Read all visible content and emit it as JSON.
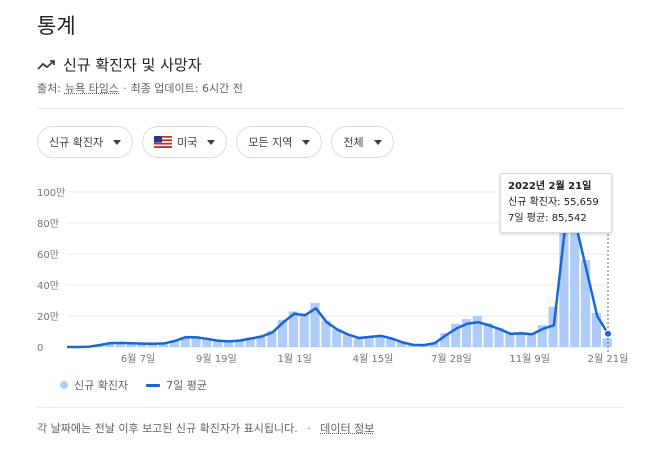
{
  "heading": "통계",
  "subheading": "신규 확진자 및 사망자",
  "source": {
    "label": "출처:",
    "link": "뉴욕 타임스",
    "dot": "·",
    "updated": "최종 업데이트: 6시간 전"
  },
  "filters": {
    "metric": "신규 확진자",
    "country": "미국",
    "region": "모든 지역",
    "period": "전체"
  },
  "tooltip": {
    "date": "2022년 2월 21일",
    "new_cases": "신규 확진자: 55,659",
    "avg": "7일 평균: 85,542"
  },
  "legend": {
    "bars": "신규 확진자",
    "line": "7일 평균"
  },
  "footer": {
    "note": "각 날짜에는 전날 이후 보고된 신규 확진자가 표시됩니다.",
    "dot": "·",
    "link": "데이터 정보"
  },
  "colors": {
    "bar": "#aecbfa",
    "line": "#1967d2",
    "grid": "#ebebeb"
  },
  "chart_data": {
    "type": "bar",
    "y_ticks": [
      "0",
      "20만",
      "40만",
      "60만",
      "80만",
      "100만"
    ],
    "x_ticks": [
      "6월 7일",
      "9월 19일",
      "1월 1일",
      "4월 15일",
      "7월 28일",
      "11월 9일",
      "2월 21일"
    ],
    "ylim": [
      0,
      1000000
    ],
    "grid": true,
    "series": [
      {
        "name": "7일 평균",
        "kind": "line",
        "values": [
          0,
          0,
          2000,
          12000,
          25000,
          27000,
          24000,
          22000,
          21000,
          23000,
          40000,
          64000,
          62000,
          52000,
          40000,
          36000,
          42000,
          55000,
          68000,
          95000,
          160000,
          215000,
          205000,
          250000,
          160000,
          112000,
          80000,
          58000,
          65000,
          72000,
          55000,
          30000,
          14000,
          12000,
          25000,
          75000,
          120000,
          150000,
          160000,
          140000,
          115000,
          85000,
          88000,
          82000,
          118000,
          140000,
          750000,
          800000,
          500000,
          200000,
          85542
        ]
      },
      {
        "name": "신규 확진자",
        "kind": "bar",
        "values": [
          0,
          0,
          3000,
          14000,
          26000,
          28000,
          25000,
          22000,
          20000,
          24000,
          44000,
          66000,
          60000,
          50000,
          41000,
          34000,
          45000,
          60000,
          72000,
          105000,
          175000,
          230000,
          215000,
          285000,
          170000,
          118000,
          82000,
          56000,
          68000,
          76000,
          52000,
          30000,
          13000,
          15000,
          28000,
          90000,
          150000,
          180000,
          200000,
          155000,
          125000,
          90000,
          95000,
          85000,
          140000,
          260000,
          800000,
          880000,
          560000,
          220000,
          55659
        ]
      }
    ]
  }
}
